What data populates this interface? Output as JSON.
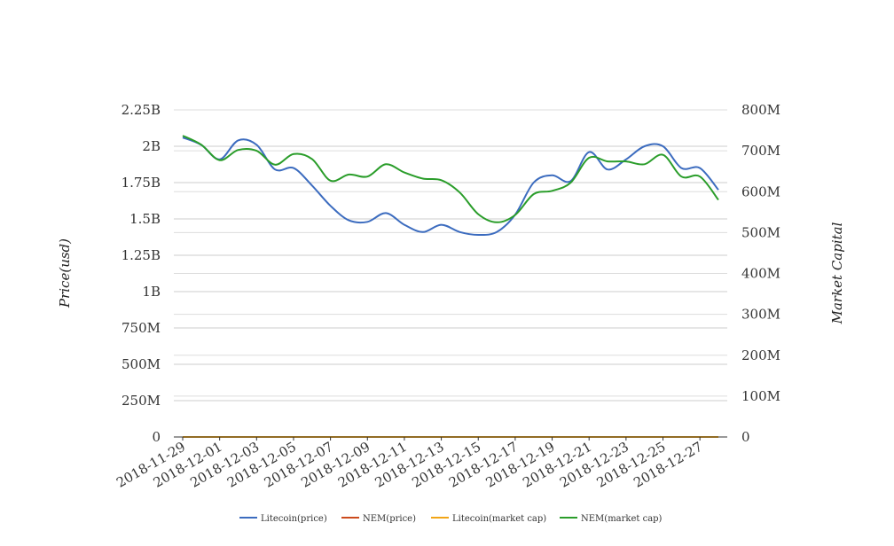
{
  "chart_data": {
    "type": "line",
    "title": "",
    "xlabel": "",
    "y_left_label": "Price(usd)",
    "y_right_label": "Market Capital",
    "x_tick_labels": [
      "2018-11-29",
      "2018-12-01",
      "2018-12-03",
      "2018-12-05",
      "2018-12-07",
      "2018-12-09",
      "2018-12-11",
      "2018-12-13",
      "2018-12-15",
      "2018-12-17",
      "2018-12-19",
      "2018-12-21",
      "2018-12-23",
      "2018-12-25",
      "2018-12-27"
    ],
    "y_left_ticks": [
      "0",
      "250M",
      "500M",
      "750M",
      "1B",
      "1.25B",
      "1.5B",
      "1.75B",
      "2B",
      "2.25B"
    ],
    "y_right_ticks": [
      "0",
      "100M",
      "200M",
      "300M",
      "400M",
      "500M",
      "600M",
      "700M",
      "800M"
    ],
    "ylim_left": [
      0,
      2250000000
    ],
    "ylim_right": [
      0,
      800000000
    ],
    "grid": true,
    "legend_position": "bottom",
    "x": [
      "2018-11-29",
      "2018-11-30",
      "2018-12-01",
      "2018-12-02",
      "2018-12-03",
      "2018-12-04",
      "2018-12-05",
      "2018-12-06",
      "2018-12-07",
      "2018-12-08",
      "2018-12-09",
      "2018-12-10",
      "2018-12-11",
      "2018-12-12",
      "2018-12-13",
      "2018-12-14",
      "2018-12-15",
      "2018-12-16",
      "2018-12-17",
      "2018-12-18",
      "2018-12-19",
      "2018-12-20",
      "2018-12-21",
      "2018-12-22",
      "2018-12-23",
      "2018-12-24",
      "2018-12-25",
      "2018-12-26",
      "2018-12-27",
      "2018-12-28"
    ],
    "series": [
      {
        "name": "Litecoin(price)",
        "axis": "left",
        "color": "#3c6cbf",
        "values": [
          2060000000,
          2010000000,
          1910000000,
          2040000000,
          2010000000,
          1840000000,
          1850000000,
          1730000000,
          1590000000,
          1490000000,
          1480000000,
          1540000000,
          1460000000,
          1410000000,
          1460000000,
          1410000000,
          1390000000,
          1410000000,
          1530000000,
          1750000000,
          1800000000,
          1760000000,
          1960000000,
          1840000000,
          1910000000,
          2000000000,
          2000000000,
          1850000000,
          1850000000,
          1700000000
        ]
      },
      {
        "name": "NEM(price)",
        "axis": "left",
        "color": "#cc4b1c",
        "values": [
          0,
          0,
          0,
          0,
          0,
          0,
          0,
          0,
          0,
          0,
          0,
          0,
          0,
          0,
          0,
          0,
          0,
          0,
          0,
          0,
          0,
          0,
          0,
          0,
          0,
          0,
          0,
          0,
          0,
          0
        ]
      },
      {
        "name": "Litecoin(market cap)",
        "axis": "right",
        "color": "#f2a516",
        "values": [
          0,
          0,
          0,
          0,
          0,
          0,
          0,
          0,
          0,
          0,
          0,
          0,
          0,
          0,
          0,
          0,
          0,
          0,
          0,
          0,
          0,
          0,
          0,
          0,
          0,
          0,
          0,
          0,
          0,
          0
        ]
      },
      {
        "name": "NEM(market cap)",
        "axis": "right",
        "color": "#2a9d2a",
        "values": [
          737000000,
          715000000,
          677000000,
          702000000,
          700000000,
          666000000,
          692000000,
          680000000,
          627000000,
          642000000,
          637000000,
          667000000,
          647000000,
          632000000,
          628000000,
          598000000,
          545000000,
          525000000,
          543000000,
          594000000,
          602000000,
          622000000,
          683000000,
          674000000,
          674000000,
          667000000,
          690000000,
          637000000,
          637000000,
          580000000
        ]
      }
    ]
  }
}
